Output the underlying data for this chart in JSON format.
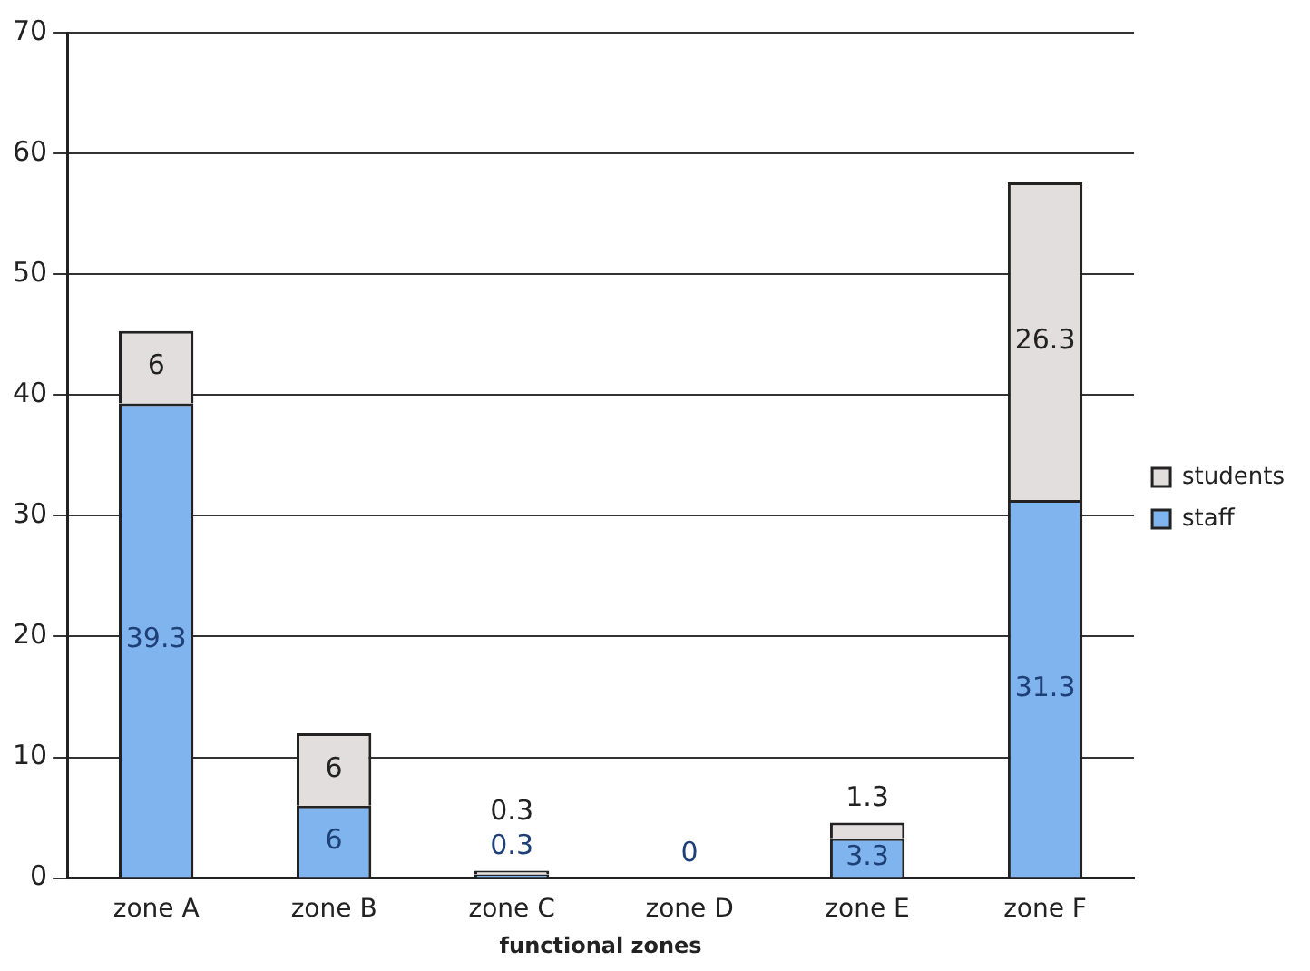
{
  "chart_data": {
    "type": "bar",
    "xlabel": "functional zones",
    "categories": [
      "zone A",
      "zone B",
      "zone C",
      "zone D",
      "zone E",
      "zone F"
    ],
    "stacked": true,
    "series": [
      {
        "name": "staff",
        "color": "#80b4ee",
        "values": [
          39.3,
          6,
          0.3,
          0,
          3.3,
          31.3
        ],
        "value_labels": [
          "39.3",
          "6",
          "0.3",
          "0",
          "3.3",
          "31.3"
        ]
      },
      {
        "name": "students",
        "color": "#e2dede",
        "values": [
          6,
          6,
          0.3,
          0,
          1.3,
          26.3
        ],
        "value_labels": [
          "6",
          "6",
          "0.3",
          null,
          "1.3",
          "26.3"
        ]
      }
    ],
    "ylim": [
      0,
      70
    ],
    "yticks": [
      0,
      10,
      20,
      30,
      40,
      50,
      60,
      70
    ],
    "grid": "y",
    "legend": "right"
  }
}
